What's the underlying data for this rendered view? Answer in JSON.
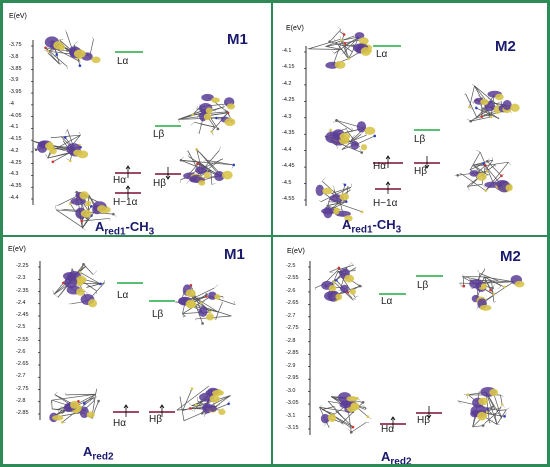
{
  "colors": {
    "frame": "#2e8b57",
    "lumo": "#22aa44",
    "homo": "#7a1030",
    "label": "#1a1a6e",
    "lobe_purple": "#5a3d96",
    "lobe_yellow": "#d8c44a"
  },
  "panels": [
    {
      "id": "tl",
      "model": "M1",
      "energy_label": "E(eV)",
      "caption_main": "A",
      "caption_sub": "red1",
      "caption_tail": "-CH",
      "caption_tail_sub": "3",
      "ticks": [
        "-3.75",
        "-3.8",
        "-3.85",
        "-3.9",
        "-3.95",
        "-4",
        "-4.05",
        "-4.1",
        "-4.15",
        "-4.2",
        "-4.25",
        "-4.3",
        "-4.35",
        "-4.4"
      ],
      "levels": [
        {
          "label": "Lα",
          "kind": "lumo",
          "spin": ""
        },
        {
          "label": "Lβ",
          "kind": "lumo",
          "spin": ""
        },
        {
          "label": "Hα",
          "kind": "homo",
          "spin": "up"
        },
        {
          "label": "Hβ",
          "kind": "homo",
          "spin": "down"
        },
        {
          "label": "H−1α",
          "kind": "homo",
          "spin": "up"
        }
      ]
    },
    {
      "id": "tr",
      "model": "M2",
      "energy_label": "E(eV)",
      "caption_main": "A",
      "caption_sub": "red1",
      "caption_tail": "-CH",
      "caption_tail_sub": "3",
      "ticks": [
        "-4.1",
        "-4.15",
        "-4.2",
        "-4.25",
        "-4.3",
        "-4.35",
        "-4.4",
        "-4.45",
        "-4.5",
        "-4.55"
      ],
      "levels": [
        {
          "label": "Lα",
          "kind": "lumo",
          "spin": ""
        },
        {
          "label": "Lβ",
          "kind": "lumo",
          "spin": ""
        },
        {
          "label": "Hα",
          "kind": "homo",
          "spin": "up"
        },
        {
          "label": "Hβ",
          "kind": "homo",
          "spin": "down"
        },
        {
          "label": "H−1α",
          "kind": "homo",
          "spin": "up"
        }
      ]
    },
    {
      "id": "bl",
      "model": "M1",
      "energy_label": "E(eV)",
      "caption_main": "A",
      "caption_sub": "red2",
      "caption_tail": "",
      "caption_tail_sub": "",
      "ticks": [
        "-2.25",
        "-2.3",
        "-2.35",
        "-2.4",
        "-2.45",
        "-2.5",
        "-2.55",
        "-2.6",
        "-2.65",
        "-2.7",
        "-2.75",
        "-2.8",
        "-2.85"
      ],
      "levels": [
        {
          "label": "Lα",
          "kind": "lumo",
          "spin": ""
        },
        {
          "label": "Lβ",
          "kind": "lumo",
          "spin": ""
        },
        {
          "label": "Hα",
          "kind": "homo",
          "spin": "up"
        },
        {
          "label": "Hβ",
          "kind": "homo",
          "spin": "up"
        }
      ]
    },
    {
      "id": "br",
      "model": "M2",
      "energy_label": "E(eV)",
      "caption_main": "A",
      "caption_sub": "red2",
      "caption_tail": "",
      "caption_tail_sub": "",
      "ticks": [
        "-2.5",
        "-2.55",
        "-2.6",
        "-2.65",
        "-2.7",
        "-2.75",
        "-2.8",
        "-2.85",
        "-2.9",
        "-2.95",
        "-3.0",
        "-3.05",
        "-3.1",
        "-3.15"
      ],
      "levels": [
        {
          "label": "Lα",
          "kind": "lumo",
          "spin": ""
        },
        {
          "label": "Lβ",
          "kind": "lumo",
          "spin": ""
        },
        {
          "label": "Hα",
          "kind": "homo",
          "spin": "up"
        },
        {
          "label": "Hβ",
          "kind": "homo",
          "spin": "down"
        }
      ]
    }
  ]
}
